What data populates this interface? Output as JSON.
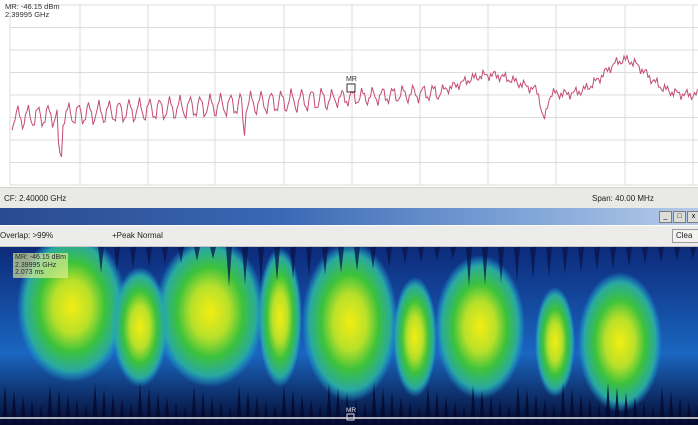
{
  "spectrum": {
    "marker_readout": {
      "level": "MR: -46.15 dBm",
      "freq": "2.39995 GHz"
    },
    "marker_label": "MR",
    "trace_color": "#c24b78"
  },
  "status_bar": {
    "cf": "CF: 2.40000 GHz",
    "span": "Span: 40.00 MHz"
  },
  "window": {
    "minimize": "_",
    "restore": "□",
    "close": "x"
  },
  "toolbar": {
    "overlap": "Overlap: >99%",
    "peak": "+Peak Normal",
    "clear": "Clea"
  },
  "spectrogram": {
    "marker_readout": {
      "level": "MR: -46.15 dBm",
      "freq": "2.39995 GHz",
      "time": "2.073 ms"
    },
    "marker_label": "MR",
    "colors": {
      "low": "#0a0f3a",
      "mid": "#1aa7e0",
      "high": "#38c23a",
      "peak": "#f0ea10"
    }
  }
}
